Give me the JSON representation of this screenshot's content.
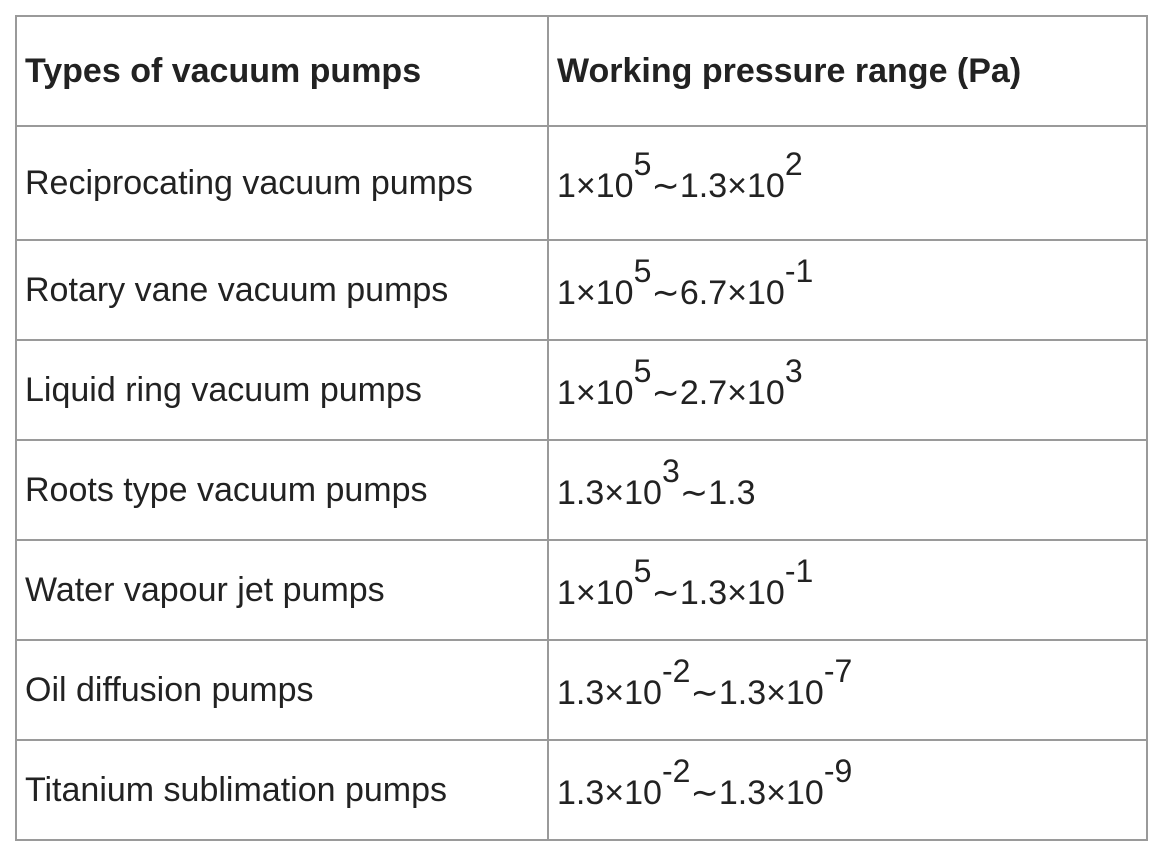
{
  "table": {
    "header": [
      "Types of vacuum pumps",
      "Working pressure range (Pa)"
    ],
    "rows": [
      {
        "type": "Reciprocating vacuum pumps",
        "range": [
          {
            "text": "1×10",
            "sup": "5"
          },
          {
            "text": "∼1.3×10",
            "sup": "2"
          }
        ]
      },
      {
        "type": "Rotary vane vacuum pumps",
        "range": [
          {
            "text": "1×10",
            "sup": "5"
          },
          {
            "text": "∼6.7×10",
            "sup": "-1"
          }
        ]
      },
      {
        "type": "Liquid ring vacuum pumps",
        "range": [
          {
            "text": "1×10",
            "sup": "5"
          },
          {
            "text": "∼2.7×10",
            "sup": "3"
          }
        ]
      },
      {
        "type": "Roots type vacuum pumps",
        "range": [
          {
            "text": "1.3×10",
            "sup": "3"
          },
          {
            "text": "∼1.3"
          }
        ]
      },
      {
        "type": "Water vapour jet pumps",
        "range": [
          {
            "text": "1×10",
            "sup": "5"
          },
          {
            "text": "∼1.3×10",
            "sup": "-1"
          }
        ]
      },
      {
        "type": "Oil diffusion pumps",
        "range": [
          {
            "text": "1.3×10",
            "sup": "-2"
          },
          {
            "text": "∼1.3×10",
            "sup": "-7"
          }
        ]
      },
      {
        "type": "Titanium sublimation pumps",
        "range": [
          {
            "text": "1.3×10",
            "sup": "-2"
          },
          {
            "text": "∼1.3×10",
            "sup": "-9"
          }
        ]
      }
    ]
  }
}
